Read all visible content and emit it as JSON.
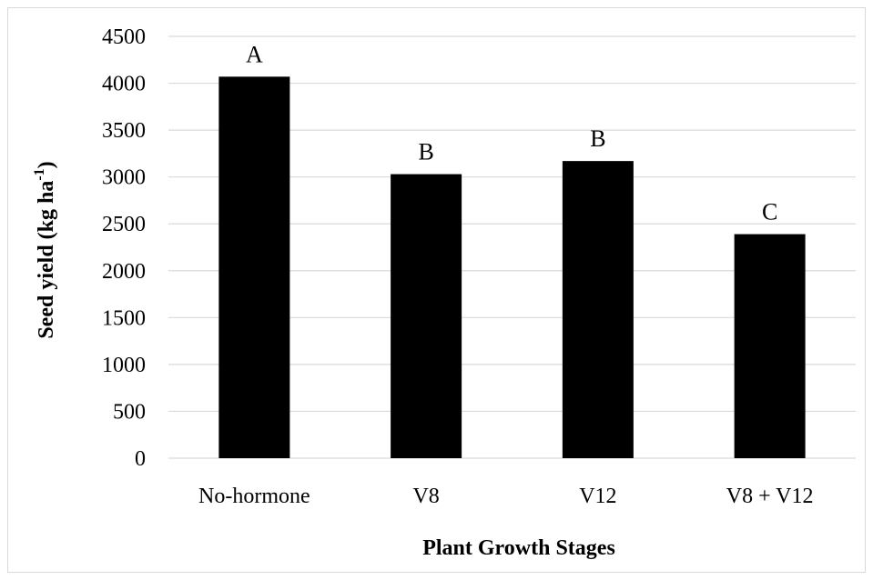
{
  "chart_data": {
    "type": "bar",
    "categories": [
      "No-hormone",
      "V8",
      "V12",
      "V8 + V12"
    ],
    "values": [
      4070,
      3030,
      3170,
      2390
    ],
    "data_labels": [
      "A",
      "B",
      "B",
      "C"
    ],
    "title": "",
    "xlabel": "Plant Growth Stages",
    "ylabel_main": "Seed yield (kg ha",
    "ylabel_sup": "-1",
    "ylabel_tail": ")",
    "ylim": [
      0,
      4500
    ],
    "yticks": [
      0,
      500,
      1000,
      1500,
      2000,
      2500,
      3000,
      3500,
      4000,
      4500
    ],
    "grid": true,
    "legend": "none",
    "bar_color": "#000000",
    "grid_color": "#d9d9d9"
  }
}
